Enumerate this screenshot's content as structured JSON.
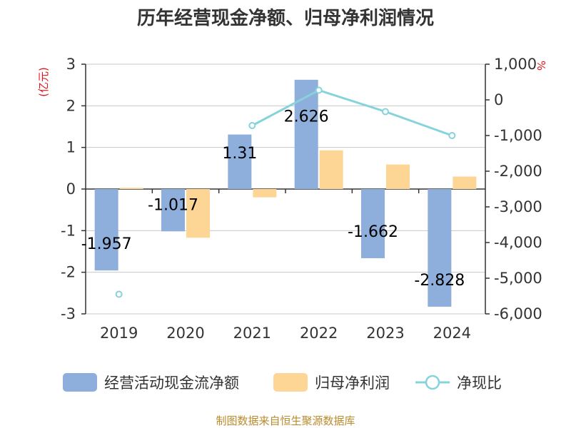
{
  "chart_data": {
    "type": "bar",
    "title": "历年经营现金净额、归母净利润情况",
    "categories": [
      "2019",
      "2020",
      "2021",
      "2022",
      "2023",
      "2024"
    ],
    "series": [
      {
        "name": "经营活动现金流净额",
        "type": "bar",
        "axis": "left",
        "color": "#8eaedb",
        "values": [
          -1.957,
          -1.017,
          1.31,
          2.626,
          -1.662,
          -2.828
        ],
        "labels": [
          "-1.957",
          "-1.017",
          "1.31",
          "2.626",
          "-1.662",
          "-2.828"
        ]
      },
      {
        "name": "归母净利润",
        "type": "bar",
        "axis": "left",
        "color": "#fdd594",
        "values": [
          0.03,
          -1.17,
          -0.2,
          0.93,
          0.59,
          0.3
        ]
      },
      {
        "name": "净现比",
        "type": "line",
        "axis": "right",
        "color": "#86d3db",
        "values": [
          -5450,
          null,
          -720,
          270,
          -330,
          -1000
        ]
      }
    ],
    "left_axis": {
      "unit": "(亿元)",
      "ylim": [
        -3,
        3
      ],
      "ticks": [
        3,
        2,
        1,
        0,
        -1,
        -2,
        -3
      ],
      "tick_labels": [
        "3",
        "2",
        "1",
        "0",
        "-1",
        "-2",
        "-3"
      ]
    },
    "right_axis": {
      "unit": "%",
      "ylim": [
        -6000,
        1000
      ],
      "ticks": [
        1000,
        0,
        -1000,
        -2000,
        -3000,
        -4000,
        -5000,
        -6000
      ],
      "tick_labels": [
        "1,000",
        "0",
        "-1,000",
        "-2,000",
        "-3,000",
        "-4,000",
        "-5,000",
        "-6,000"
      ]
    },
    "grid": true,
    "legend_position": "bottom"
  },
  "source": "制图数据来自恒生聚源数据库"
}
